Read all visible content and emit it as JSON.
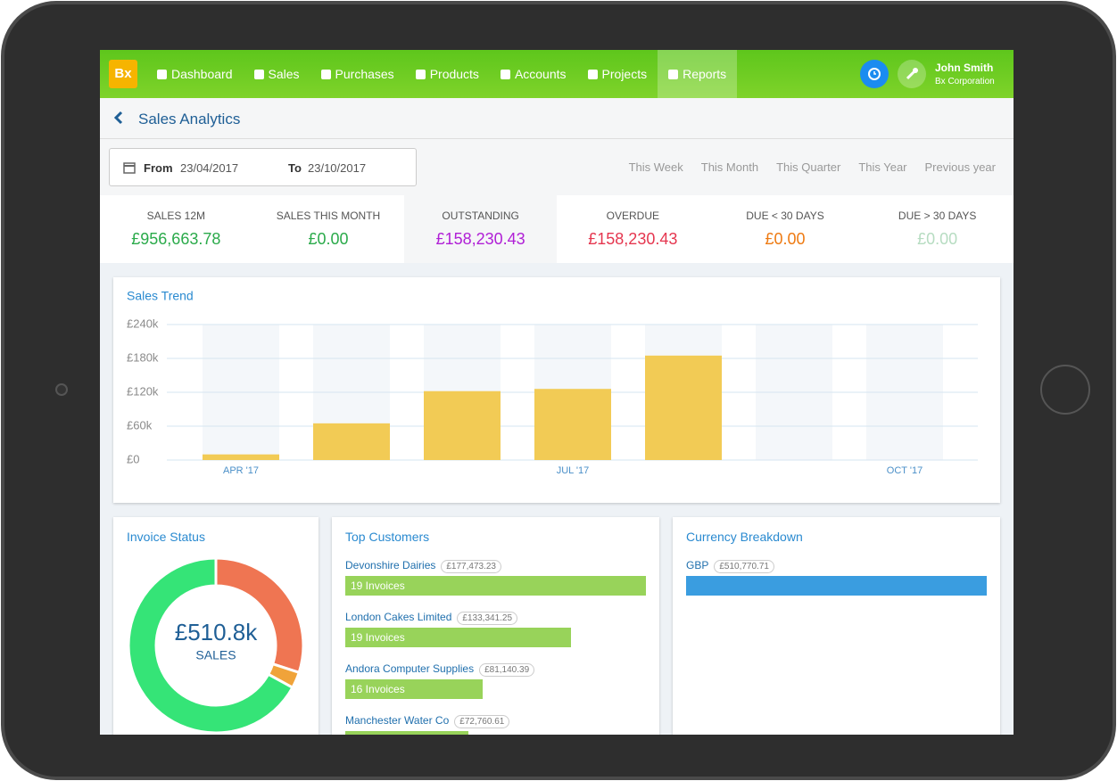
{
  "header": {
    "logo": "Bx",
    "nav": [
      "Dashboard",
      "Sales",
      "Purchases",
      "Products",
      "Accounts",
      "Projects",
      "Reports"
    ],
    "active": 6,
    "user_name": "John Smith",
    "company": "Bx Corporation"
  },
  "page_title": "Sales Analytics",
  "filters": {
    "from_label": "From",
    "from": "23/04/2017",
    "to_label": "To",
    "to": "23/10/2017",
    "ranges": [
      "This Week",
      "This Month",
      "This Quarter",
      "This Year",
      "Previous year"
    ]
  },
  "kpis": [
    {
      "label": "SALES 12M",
      "value": "£956,663.78",
      "color": "#2aaa4a"
    },
    {
      "label": "SALES THIS MONTH",
      "value": "£0.00",
      "color": "#2aaa4a"
    },
    {
      "label": "OUTSTANDING",
      "value": "£158,230.43",
      "color": "#b01fd6"
    },
    {
      "label": "OVERDUE",
      "value": "£158,230.43",
      "color": "#e5364f"
    },
    {
      "label": "DUE < 30 DAYS",
      "value": "£0.00",
      "color": "#ee7a12"
    },
    {
      "label": "DUE > 30 DAYS",
      "value": "£0.00",
      "color": "#b6dcc1"
    }
  ],
  "chart_data": {
    "type": "bar",
    "title": "Sales Trend",
    "categories": [
      "APR '17",
      null,
      null,
      "JUL '17",
      null,
      null,
      "OCT '17"
    ],
    "values": [
      10000,
      65000,
      122000,
      126000,
      185000,
      0,
      0
    ],
    "color": "#f2cb55",
    "ylim": [
      0,
      240000
    ],
    "yticks": [
      {
        "value": 0,
        "label": "£0"
      },
      {
        "value": 60000,
        "label": "£60k"
      },
      {
        "value": 120000,
        "label": "£120k"
      },
      {
        "value": 180000,
        "label": "£180k"
      },
      {
        "value": 240000,
        "label": "£240k"
      }
    ],
    "grid": true
  },
  "invoice_status": {
    "title": "Invoice Status",
    "center_value": "£510.8k",
    "center_label": "SALES",
    "segments": [
      {
        "color": "#ef7552",
        "value": 30
      },
      {
        "color": "#f0a33a",
        "value": 3
      },
      {
        "color": "#35e477",
        "value": 67
      }
    ]
  },
  "top_customers": {
    "title": "Top Customers",
    "items": [
      {
        "name": "Devonshire Dairies",
        "amount": 177473.23,
        "amount_label": "£177,473.23",
        "invoices": "19 Invoices"
      },
      {
        "name": "London Cakes Limited",
        "amount": 133341.25,
        "amount_label": "£133,341.25",
        "invoices": "19 Invoices"
      },
      {
        "name": "Andora Computer Supplies",
        "amount": 81140.39,
        "amount_label": "£81,140.39",
        "invoices": "16 Invoices"
      },
      {
        "name": "Manchester Water Co",
        "amount": 72760.61,
        "amount_label": "£72,760.61"
      }
    ]
  },
  "currency_breakdown": {
    "title": "Currency Breakdown",
    "items": [
      {
        "name": "GBP",
        "amount": 510770.71,
        "amount_label": "£510,770.71"
      }
    ]
  }
}
